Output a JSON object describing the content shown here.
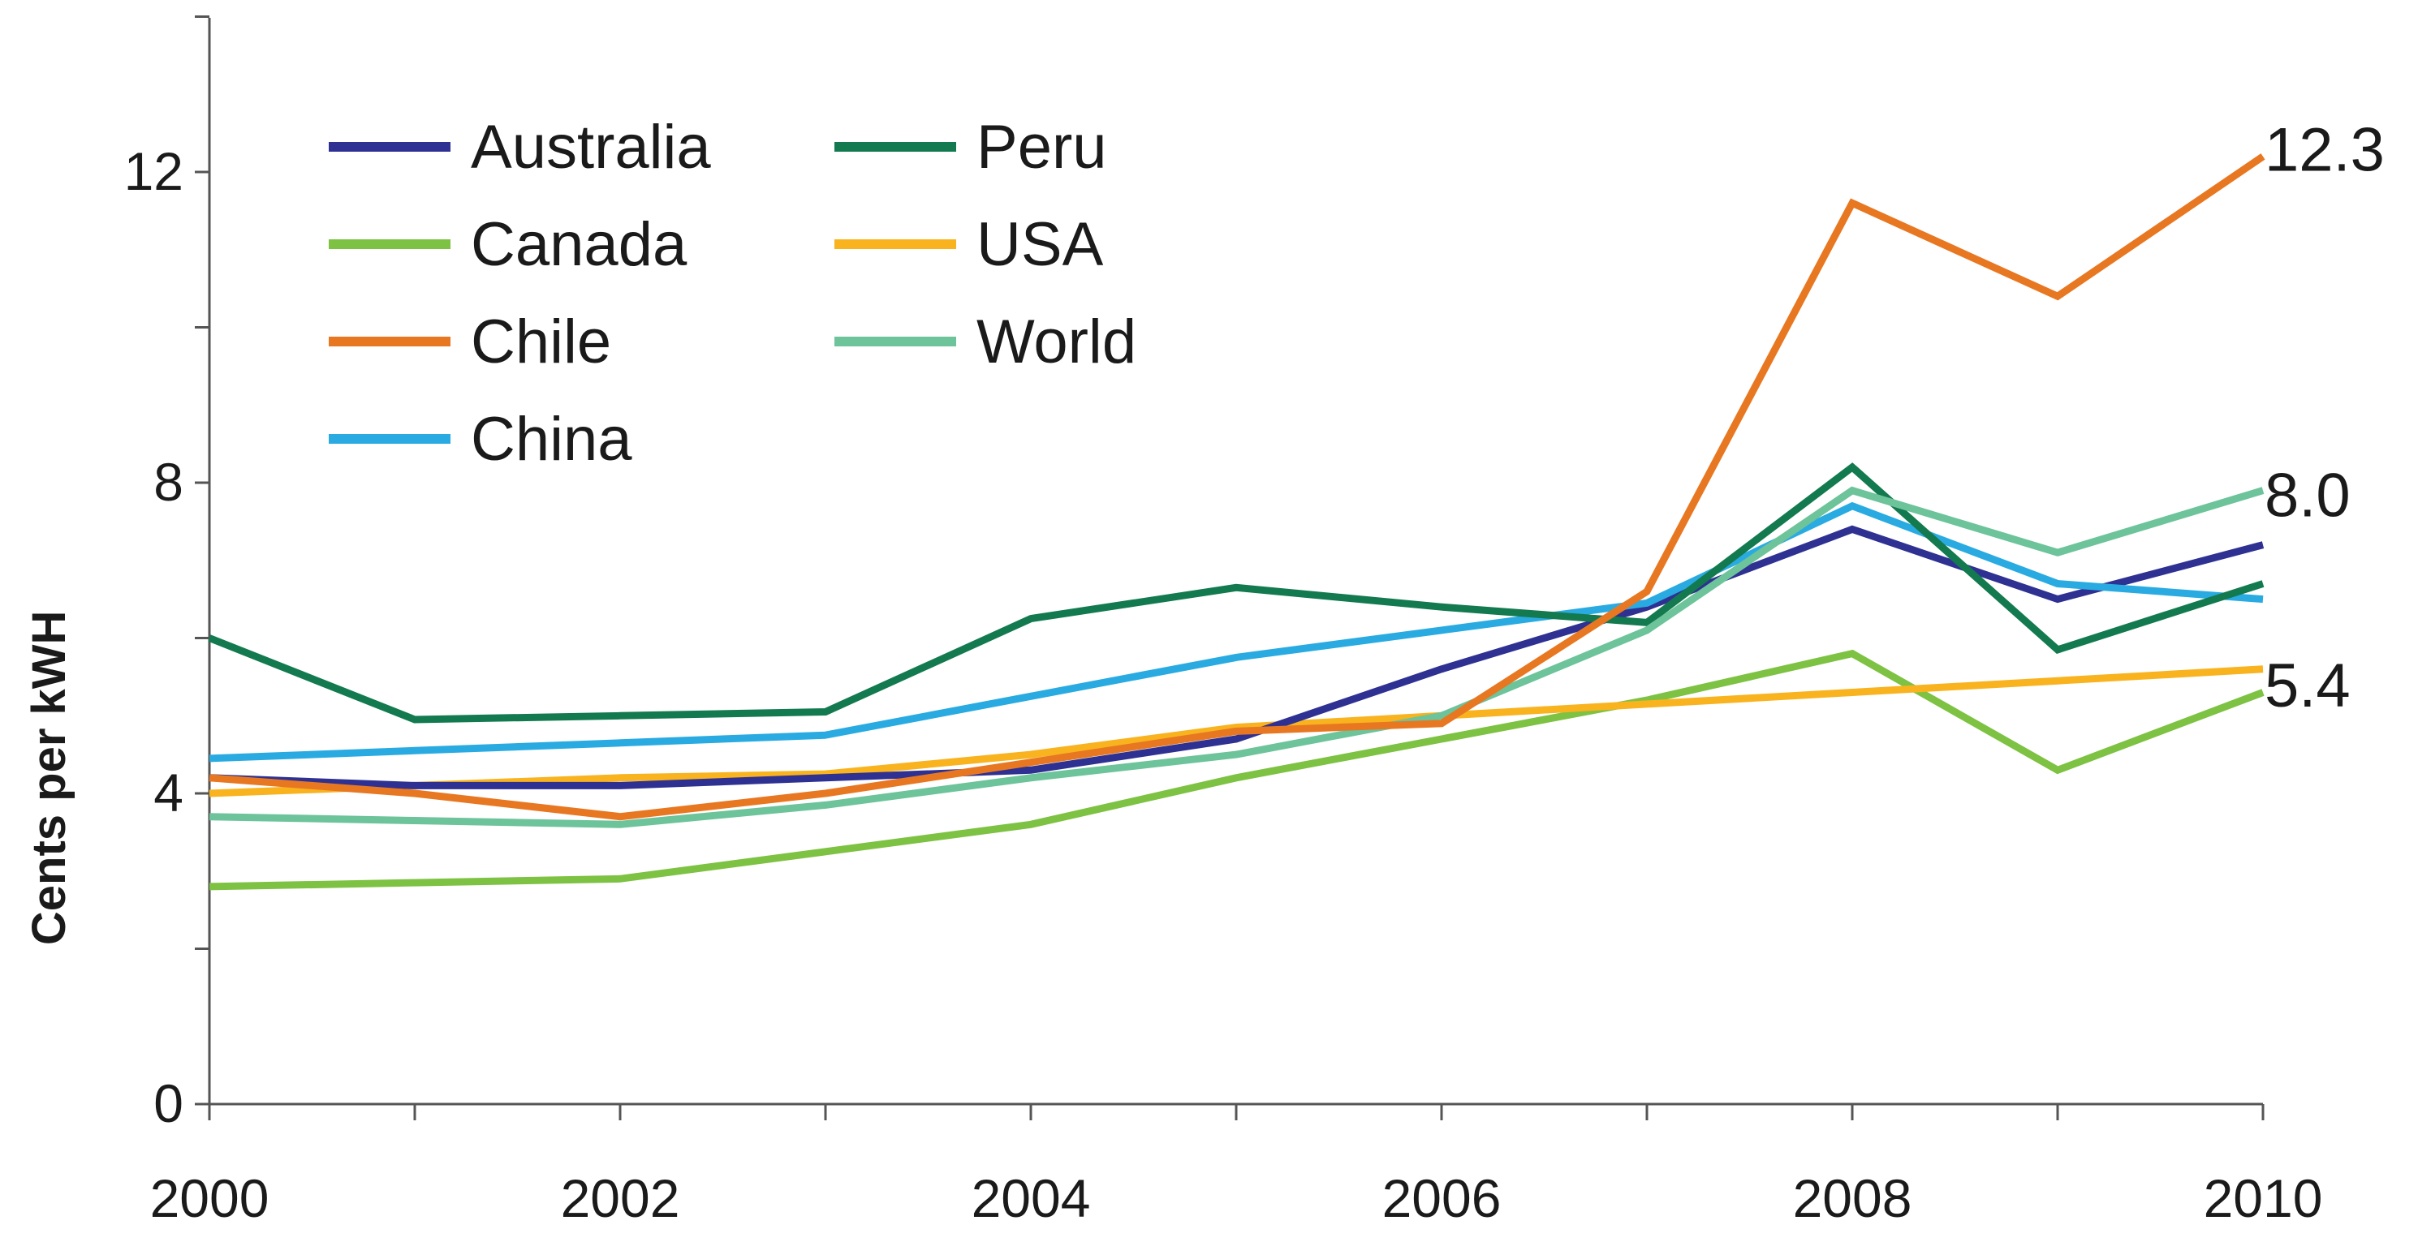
{
  "chart_data": {
    "type": "line",
    "title": "",
    "xlabel": "",
    "ylabel": "Cents per kWH",
    "x": [
      2000,
      2001,
      2002,
      2003,
      2004,
      2005,
      2006,
      2007,
      2008,
      2009,
      2010
    ],
    "xlim": [
      2000,
      2010
    ],
    "ylim": [
      0,
      14
    ],
    "x_ticks": [
      2000,
      2002,
      2004,
      2006,
      2008,
      2010
    ],
    "x_tick_labels": [
      "2000",
      "2002",
      "2004",
      "2006",
      "2008",
      "2010"
    ],
    "y_ticks": [
      0,
      4,
      8,
      12
    ],
    "y_tick_labels": [
      "0",
      "4",
      "8",
      "12"
    ],
    "grid": false,
    "legend_position": "top-left",
    "series": [
      {
        "name": "Australia",
        "color": "#2E3192",
        "values": [
          4.2,
          4.1,
          4.1,
          4.2,
          4.3,
          4.7,
          5.6,
          6.4,
          7.4,
          6.5,
          7.2
        ]
      },
      {
        "name": "Canada",
        "color": "#7DC242",
        "values": [
          2.8,
          2.85,
          2.9,
          3.25,
          3.6,
          4.2,
          4.7,
          5.2,
          5.8,
          4.3,
          5.3
        ]
      },
      {
        "name": "Chile",
        "color": "#E87722",
        "values": [
          4.2,
          4.0,
          3.7,
          4.0,
          4.4,
          4.8,
          4.9,
          6.6,
          11.6,
          10.4,
          12.2
        ]
      },
      {
        "name": "China",
        "color": "#29ABE2",
        "values": [
          4.45,
          4.55,
          4.65,
          4.75,
          5.25,
          5.75,
          6.1,
          6.45,
          7.7,
          6.7,
          6.5
        ]
      },
      {
        "name": "Peru",
        "color": "#137A4F",
        "values": [
          6.0,
          4.95,
          5.0,
          5.05,
          6.25,
          6.65,
          6.4,
          6.2,
          8.2,
          5.85,
          6.7
        ]
      },
      {
        "name": "USA",
        "color": "#F8B31E",
        "values": [
          4.0,
          4.1,
          4.2,
          4.25,
          4.5,
          4.85,
          5.0,
          5.15,
          5.3,
          5.45,
          5.6
        ]
      },
      {
        "name": "World",
        "color": "#6DC39A",
        "values": [
          3.7,
          3.65,
          3.6,
          3.85,
          4.2,
          4.5,
          5.0,
          6.1,
          7.9,
          7.1,
          7.9
        ]
      }
    ],
    "annotations": [
      "12.3",
      "8.0",
      "5.4"
    ]
  }
}
